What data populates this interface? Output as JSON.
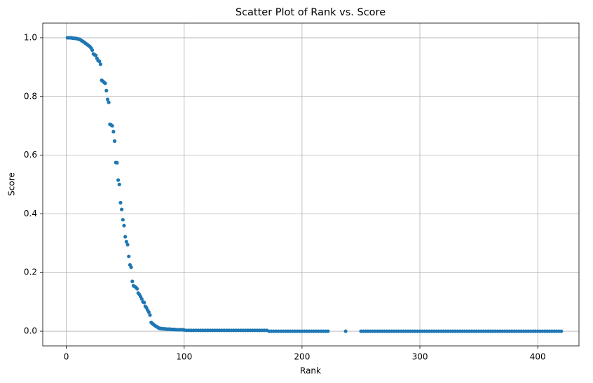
{
  "chart_data": {
    "type": "scatter",
    "title": "Scatter Plot of Rank vs. Score",
    "x_label": "Rank",
    "y_label": "Score",
    "series": [
      {
        "color": "#1f77b4",
        "x": [
          1,
          2,
          3,
          4,
          5,
          6,
          7,
          8,
          9,
          10,
          11,
          12,
          13,
          14,
          15,
          16,
          17,
          18,
          19,
          20,
          21,
          22,
          23,
          24,
          25,
          26,
          27,
          28,
          29,
          30,
          31,
          32,
          33,
          34,
          35,
          36,
          37,
          38,
          39,
          40,
          41,
          42,
          43,
          44,
          45,
          46,
          47,
          48,
          49,
          50,
          51,
          52,
          53,
          54,
          55,
          56,
          57,
          58,
          59,
          60,
          61,
          62,
          63,
          64,
          65,
          66,
          67,
          68,
          69,
          70,
          71,
          72,
          73,
          74,
          75,
          76,
          77,
          78,
          79,
          80,
          81,
          82,
          83,
          84,
          85,
          86,
          87,
          88,
          89,
          90,
          91,
          92,
          93,
          94,
          95,
          96,
          97,
          98,
          99,
          100,
          102,
          104,
          106,
          108,
          110,
          112,
          114,
          116,
          118,
          120,
          122,
          124,
          126,
          128,
          130,
          132,
          134,
          136,
          138,
          140,
          142,
          144,
          146,
          148,
          150,
          152,
          154,
          156,
          158,
          160,
          162,
          164,
          166,
          168,
          170,
          172,
          174,
          176,
          178,
          180,
          182,
          184,
          186,
          188,
          190,
          192,
          194,
          196,
          198,
          200,
          202,
          204,
          206,
          208,
          210,
          212,
          214,
          216,
          218,
          220,
          222,
          237,
          250,
          252,
          254,
          256,
          258,
          260,
          262,
          264,
          266,
          268,
          270,
          272,
          274,
          276,
          278,
          280,
          282,
          284,
          286,
          288,
          290,
          292,
          294,
          296,
          298,
          300,
          302,
          304,
          306,
          308,
          310,
          312,
          314,
          316,
          318,
          320,
          322,
          324,
          326,
          328,
          330,
          332,
          334,
          336,
          338,
          340,
          342,
          344,
          346,
          348,
          350,
          352,
          354,
          356,
          358,
          360,
          362,
          364,
          366,
          368,
          370,
          372,
          374,
          376,
          378,
          380,
          382,
          384,
          386,
          388,
          390,
          392,
          394,
          396,
          398,
          400,
          402,
          404,
          406,
          408,
          410,
          412,
          414,
          416,
          418,
          420
        ],
        "values": [
          1,
          1,
          1,
          1,
          0.999,
          0.999,
          0.998,
          0.998,
          0.997,
          0.996,
          0.995,
          0.993,
          0.99,
          0.988,
          0.985,
          0.982,
          0.979,
          0.976,
          0.973,
          0.97,
          0.965,
          0.958,
          0.945,
          0.942,
          0.94,
          0.93,
          0.922,
          0.92,
          0.91,
          0.855,
          0.852,
          0.848,
          0.845,
          0.82,
          0.79,
          0.78,
          0.705,
          0.703,
          0.7,
          0.68,
          0.648,
          0.575,
          0.574,
          0.515,
          0.5,
          0.438,
          0.415,
          0.38,
          0.36,
          0.322,
          0.305,
          0.295,
          0.255,
          0.226,
          0.218,
          0.17,
          0.155,
          0.152,
          0.15,
          0.145,
          0.13,
          0.125,
          0.118,
          0.11,
          0.1,
          0.098,
          0.085,
          0.08,
          0.072,
          0.065,
          0.055,
          0.03,
          0.026,
          0.023,
          0.02,
          0.017,
          0.015,
          0.012,
          0.01,
          0.009,
          0.009,
          0.008,
          0.008,
          0.008,
          0.007,
          0.007,
          0.007,
          0.007,
          0.006,
          0.006,
          0.006,
          0.006,
          0.005,
          0.005,
          0.005,
          0.005,
          0.005,
          0.005,
          0.005,
          0.004,
          0.003,
          0.003,
          0.003,
          0.003,
          0.003,
          0.003,
          0.003,
          0.003,
          0.003,
          0.003,
          0.003,
          0.003,
          0.003,
          0.003,
          0.003,
          0.003,
          0.003,
          0.003,
          0.003,
          0.003,
          0.003,
          0.003,
          0.003,
          0.003,
          0.003,
          0.003,
          0.003,
          0.003,
          0.003,
          0.003,
          0.003,
          0.003,
          0.003,
          0.003,
          0.003,
          0,
          0,
          0,
          0,
          0,
          0,
          0,
          0,
          0,
          0,
          0,
          0,
          0,
          0,
          0,
          0,
          0,
          0,
          0,
          0,
          0,
          0,
          0,
          0,
          0,
          0,
          0,
          0,
          0,
          0,
          0,
          0,
          0,
          0,
          0,
          0,
          0,
          0,
          0,
          0,
          0,
          0,
          0,
          0,
          0,
          0,
          0,
          0,
          0,
          0,
          0,
          0,
          0,
          0,
          0,
          0,
          0,
          0,
          0,
          0,
          0,
          0,
          0,
          0,
          0,
          0,
          0,
          0,
          0,
          0,
          0,
          0,
          0,
          0,
          0,
          0,
          0,
          0,
          0,
          0,
          0,
          0,
          0,
          0,
          0,
          0,
          0,
          0,
          0,
          0,
          0,
          0,
          0,
          0,
          0,
          0,
          0,
          0,
          0,
          0,
          0,
          0,
          0,
          0,
          0,
          0,
          0,
          0,
          0,
          0,
          0,
          0,
          0
        ]
      }
    ],
    "xlim": [
      -20,
      435
    ],
    "ylim": [
      -0.05,
      1.05
    ],
    "xticks": [
      0,
      100,
      200,
      300,
      400
    ],
    "yticks": [
      {
        "value": 0,
        "label": "0.0"
      },
      0.2,
      0.4,
      0.6,
      0.8,
      {
        "value": 1,
        "label": "1.0"
      }
    ],
    "grid": true
  }
}
